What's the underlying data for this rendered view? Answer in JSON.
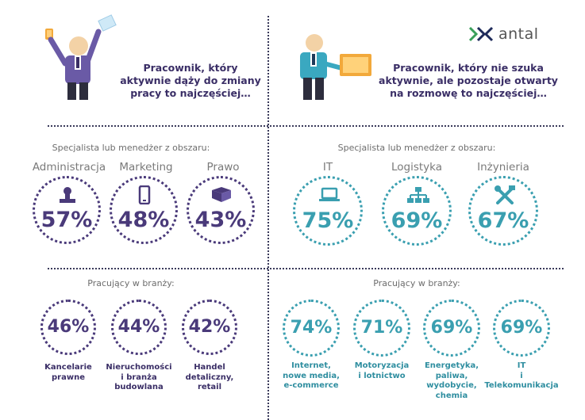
{
  "logo": {
    "name": "antal"
  },
  "left": {
    "intro": [
      "Pracownik, który",
      "aktywnie dąży do zmiany",
      "pracy to najczęściej…"
    ],
    "specialist_label": "Specjalista lub menedżer z obszaru:",
    "areas": [
      {
        "category": "Administracja",
        "value": "57%",
        "icon": "stamp-icon"
      },
      {
        "category": "Marketing",
        "value": "48%",
        "icon": "phone-icon"
      },
      {
        "category": "Prawo",
        "value": "43%",
        "icon": "book-icon"
      }
    ],
    "industry_label": "Pracujący w branży:",
    "industries": [
      {
        "value": "46%",
        "lines": [
          "Kancelarie",
          "prawne"
        ]
      },
      {
        "value": "44%",
        "lines": [
          "Nieruchomości",
          "i branża",
          "budowlana"
        ]
      },
      {
        "value": "42%",
        "lines": [
          "Handel",
          "detaliczny,",
          "retail"
        ]
      }
    ],
    "accent": "#4a3a7a"
  },
  "right": {
    "intro": [
      "Pracownik, który nie szuka",
      "aktywnie, ale pozostaje otwarty",
      "na rozmowę to najczęściej…"
    ],
    "specialist_label": "Specjalista lub menedżer z obszaru:",
    "areas": [
      {
        "category": "IT",
        "value": "75%",
        "icon": "laptop-icon"
      },
      {
        "category": "Logistyka",
        "value": "69%",
        "icon": "hierarchy-icon"
      },
      {
        "category": "Inżynieria",
        "value": "67%",
        "icon": "tools-icon"
      }
    ],
    "industry_label": "Pracujący w branży:",
    "industries": [
      {
        "value": "74%",
        "lines": [
          "Internet,",
          "nowe media,",
          "e-commerce"
        ]
      },
      {
        "value": "71%",
        "lines": [
          "Motoryzacja",
          "i lotnictwo"
        ]
      },
      {
        "value": "69%",
        "lines": [
          "Energetyka,",
          "paliwa,",
          "wydobycie,",
          "chemia"
        ]
      },
      {
        "value": "69%",
        "lines": [
          "IT",
          "i",
          "Telekomunikacja"
        ]
      }
    ],
    "accent": "#3a9fb0"
  }
}
